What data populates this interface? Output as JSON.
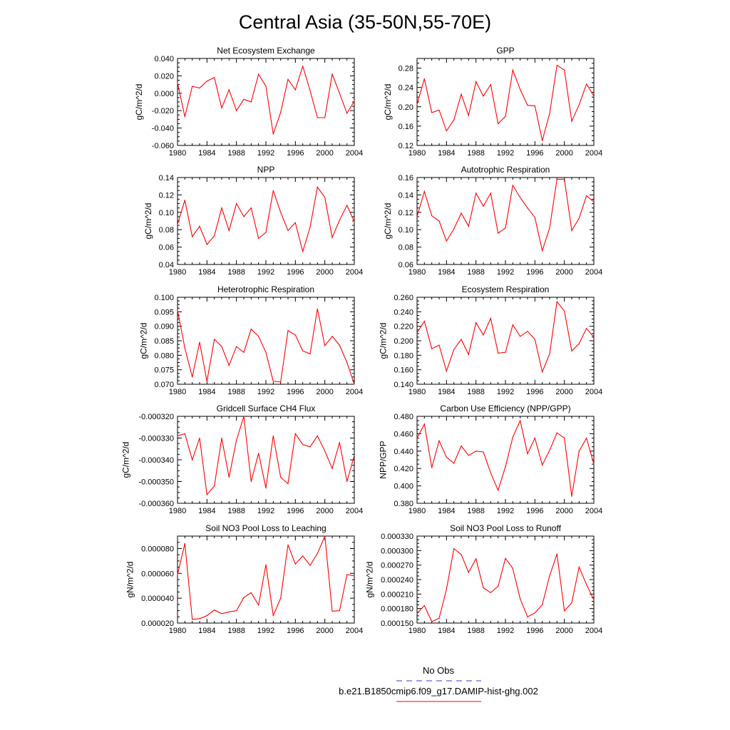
{
  "title": "Central Asia (35-50N,55-70E)",
  "colors": {
    "model_line": "#ff0000",
    "obs_line": "#3a3ad0",
    "axis": "#000000"
  },
  "legend": [
    {
      "label": "No Obs",
      "style": "dashed",
      "color": "#3a3ad0"
    },
    {
      "label": "b.e21.B1850cmip6.f09_g17.DAMIP-hist-ghg.002",
      "style": "solid",
      "color": "#ff0000"
    }
  ],
  "chart_data": [
    {
      "type": "line",
      "title": "Net Ecosystem Exchange",
      "ylabel": "gC/m^2/d",
      "xlim": [
        1980,
        2004
      ],
      "ylim": [
        -0.06,
        0.04
      ],
      "xticks": [
        "1980",
        "1984",
        "1988",
        "1992",
        "1996",
        "2000",
        "2004"
      ],
      "yticks": [
        "-0.060",
        "-0.040",
        "-0.020",
        "0.000",
        "0.020",
        "0.040"
      ],
      "x": [
        1980,
        1981,
        1982,
        1983,
        1984,
        1985,
        1986,
        1987,
        1988,
        1989,
        1990,
        1991,
        1992,
        1993,
        1994,
        1995,
        1996,
        1997,
        1998,
        1999,
        2000,
        2001,
        2002,
        2003,
        2004
      ],
      "values": [
        0.012,
        -0.027,
        0.008,
        0.006,
        0.014,
        0.018,
        -0.017,
        0.004,
        -0.02,
        -0.007,
        -0.01,
        0.022,
        0.008,
        -0.047,
        -0.022,
        0.016,
        0.004,
        0.031,
        0.003,
        -0.028,
        -0.028,
        0.022,
        0.0,
        -0.023,
        -0.009
      ]
    },
    {
      "type": "line",
      "title": "GPP",
      "ylabel": "gC/m^2/d",
      "xlim": [
        1980,
        2004
      ],
      "ylim": [
        0.12,
        0.3
      ],
      "xticks": [
        "1980",
        "1984",
        "1988",
        "1992",
        "1996",
        "2000",
        "2004"
      ],
      "yticks": [
        "0.12",
        "0.16",
        "0.20",
        "0.24",
        "0.28"
      ],
      "x": [
        1980,
        1981,
        1982,
        1983,
        1984,
        1985,
        1986,
        1987,
        1988,
        1989,
        1990,
        1991,
        1992,
        1993,
        1994,
        1995,
        1996,
        1997,
        1998,
        1999,
        2000,
        2001,
        2002,
        2003,
        2004
      ],
      "values": [
        0.205,
        0.258,
        0.188,
        0.193,
        0.15,
        0.173,
        0.226,
        0.182,
        0.252,
        0.222,
        0.246,
        0.165,
        0.18,
        0.276,
        0.236,
        0.203,
        0.202,
        0.13,
        0.186,
        0.286,
        0.276,
        0.17,
        0.204,
        0.247,
        0.222
      ]
    },
    {
      "type": "line",
      "title": "NPP",
      "ylabel": "gC/m^2/d",
      "xlim": [
        1980,
        2004
      ],
      "ylim": [
        0.04,
        0.14
      ],
      "xticks": [
        "1980",
        "1984",
        "1988",
        "1992",
        "1996",
        "2000",
        "2004"
      ],
      "yticks": [
        "0.04",
        "0.06",
        "0.08",
        "0.10",
        "0.12",
        "0.14"
      ],
      "x": [
        1980,
        1981,
        1982,
        1983,
        1984,
        1985,
        1986,
        1987,
        1988,
        1989,
        1990,
        1991,
        1992,
        1993,
        1994,
        1995,
        1996,
        1997,
        1998,
        1999,
        2000,
        2001,
        2002,
        2003,
        2004
      ],
      "values": [
        0.086,
        0.114,
        0.072,
        0.084,
        0.063,
        0.073,
        0.105,
        0.079,
        0.11,
        0.095,
        0.105,
        0.07,
        0.077,
        0.125,
        0.1,
        0.079,
        0.088,
        0.055,
        0.083,
        0.129,
        0.117,
        0.071,
        0.091,
        0.108,
        0.089
      ]
    },
    {
      "type": "line",
      "title": "Autotrophic Respiration",
      "ylabel": "gC/m^2/d",
      "xlim": [
        1980,
        2004
      ],
      "ylim": [
        0.06,
        0.16
      ],
      "xticks": [
        "1980",
        "1984",
        "1988",
        "1992",
        "1996",
        "2000",
        "2004"
      ],
      "yticks": [
        "0.06",
        "0.08",
        "0.10",
        "0.12",
        "0.14",
        "0.16"
      ],
      "x": [
        1980,
        1981,
        1982,
        1983,
        1984,
        1985,
        1986,
        1987,
        1988,
        1989,
        1990,
        1991,
        1992,
        1993,
        1994,
        1995,
        1996,
        1997,
        1998,
        1999,
        2000,
        2001,
        2002,
        2003,
        2004
      ],
      "values": [
        0.115,
        0.144,
        0.116,
        0.11,
        0.087,
        0.101,
        0.119,
        0.104,
        0.142,
        0.127,
        0.142,
        0.096,
        0.102,
        0.151,
        0.137,
        0.125,
        0.114,
        0.076,
        0.102,
        0.158,
        0.158,
        0.099,
        0.113,
        0.139,
        0.132
      ]
    },
    {
      "type": "line",
      "title": "Heterotrophic Respiration",
      "ylabel": "gC/m^2/d",
      "xlim": [
        1980,
        2004
      ],
      "ylim": [
        0.07,
        0.1
      ],
      "xticks": [
        "1980",
        "1984",
        "1988",
        "1992",
        "1996",
        "2000",
        "2004"
      ],
      "yticks": [
        "0.070",
        "0.075",
        "0.080",
        "0.085",
        "0.090",
        "0.095",
        "0.100"
      ],
      "x": [
        1980,
        1981,
        1982,
        1983,
        1984,
        1985,
        1986,
        1987,
        1988,
        1989,
        1990,
        1991,
        1992,
        1993,
        1994,
        1995,
        1996,
        1997,
        1998,
        1999,
        2000,
        2001,
        2002,
        2003,
        2004
      ],
      "values": [
        0.0955,
        0.0825,
        0.0725,
        0.0845,
        0.071,
        0.0855,
        0.083,
        0.0765,
        0.083,
        0.081,
        0.089,
        0.0865,
        0.081,
        0.071,
        0.0708,
        0.0885,
        0.087,
        0.0815,
        0.0805,
        0.096,
        0.0833,
        0.0865,
        0.0835,
        0.0775,
        0.07
      ]
    },
    {
      "type": "line",
      "title": "Ecosystem Respiration",
      "ylabel": "gC/m^2/d",
      "xlim": [
        1980,
        2004
      ],
      "ylim": [
        0.14,
        0.26
      ],
      "xticks": [
        "1980",
        "1984",
        "1988",
        "1992",
        "1996",
        "2000",
        "2004"
      ],
      "yticks": [
        "0.140",
        "0.160",
        "0.180",
        "0.200",
        "0.220",
        "0.240",
        "0.260"
      ],
      "x": [
        1980,
        1981,
        1982,
        1983,
        1984,
        1985,
        1986,
        1987,
        1988,
        1989,
        1990,
        1991,
        1992,
        1993,
        1994,
        1995,
        1996,
        1997,
        1998,
        1999,
        2000,
        2001,
        2002,
        2003,
        2004
      ],
      "values": [
        0.211,
        0.227,
        0.189,
        0.194,
        0.158,
        0.188,
        0.202,
        0.181,
        0.225,
        0.208,
        0.231,
        0.183,
        0.184,
        0.222,
        0.206,
        0.213,
        0.202,
        0.157,
        0.182,
        0.254,
        0.241,
        0.186,
        0.196,
        0.217,
        0.205
      ]
    },
    {
      "type": "line",
      "title": "Gridcell Surface CH4 Flux",
      "ylabel": "gC/m^2/d",
      "xlim": [
        1980,
        2004
      ],
      "ylim": [
        -0.00036,
        -0.00032
      ],
      "xticks": [
        "1980",
        "1984",
        "1988",
        "1992",
        "1996",
        "2000",
        "2004"
      ],
      "yticks": [
        "-0.000360",
        "-0.000350",
        "-0.000340",
        "-0.000330",
        "-0.000320"
      ],
      "x": [
        1980,
        1981,
        1982,
        1983,
        1984,
        1985,
        1986,
        1987,
        1988,
        1989,
        1990,
        1991,
        1992,
        1993,
        1994,
        1995,
        1996,
        1997,
        1998,
        1999,
        2000,
        2001,
        2002,
        2003,
        2004
      ],
      "values": [
        -0.000329,
        -0.000328,
        -0.00034,
        -0.00033,
        -0.000356,
        -0.000352,
        -0.00033,
        -0.000348,
        -0.000331,
        -0.00032,
        -0.00035,
        -0.000337,
        -0.000353,
        -0.000329,
        -0.000348,
        -0.000351,
        -0.000328,
        -0.000333,
        -0.000334,
        -0.000329,
        -0.000336,
        -0.000344,
        -0.000332,
        -0.00035,
        -0.000338
      ]
    },
    {
      "type": "line",
      "title": "Carbon Use Efficiency (NPP/GPP)",
      "ylabel": "NPP/GPP",
      "xlim": [
        1980,
        2004
      ],
      "ylim": [
        0.38,
        0.48
      ],
      "xticks": [
        "1980",
        "1984",
        "1988",
        "1992",
        "1996",
        "2000",
        "2004"
      ],
      "yticks": [
        "0.380",
        "0.400",
        "0.420",
        "0.440",
        "0.460",
        "0.480"
      ],
      "x": [
        1980,
        1981,
        1982,
        1983,
        1984,
        1985,
        1986,
        1987,
        1988,
        1989,
        1990,
        1991,
        1992,
        1993,
        1994,
        1995,
        1996,
        1997,
        1998,
        1999,
        2000,
        2001,
        2002,
        2003,
        2004
      ],
      "values": [
        0.455,
        0.471,
        0.421,
        0.452,
        0.433,
        0.426,
        0.446,
        0.435,
        0.44,
        0.439,
        0.415,
        0.395,
        0.422,
        0.456,
        0.475,
        0.437,
        0.455,
        0.424,
        0.441,
        0.461,
        0.455,
        0.388,
        0.44,
        0.455,
        0.425
      ]
    },
    {
      "type": "line",
      "title": "Soil NO3 Pool Loss to Leaching",
      "ylabel": "gN/m^2/d",
      "xlim": [
        1980,
        2004
      ],
      "ylim": [
        2e-05,
        9e-05
      ],
      "xticks": [
        "1980",
        "1984",
        "1988",
        "1992",
        "1996",
        "2000",
        "2004"
      ],
      "yticks": [
        "0.000020",
        "0.000040",
        "0.000060",
        "0.000080"
      ],
      "x": [
        1980,
        1981,
        1982,
        1983,
        1984,
        1985,
        1986,
        1987,
        1988,
        1989,
        1990,
        1991,
        1992,
        1993,
        1994,
        1995,
        1996,
        1997,
        1998,
        1999,
        2000,
        2001,
        2002,
        2003,
        2004
      ],
      "values": [
        5.9e-05,
        8.4e-05,
        2.3e-05,
        2.35e-05,
        2.6e-05,
        3.05e-05,
        2.75e-05,
        2.9e-05,
        3e-05,
        4.05e-05,
        4.45e-05,
        3.45e-05,
        6.7e-05,
        2.6e-05,
        4e-05,
        8.3e-05,
        6.75e-05,
        7.4e-05,
        6.65e-05,
        7.6e-05,
        9e-05,
        2.95e-05,
        3e-05,
        5.9e-05,
        5.8e-05
      ]
    },
    {
      "type": "line",
      "title": "Soil NO3 Pool Loss to Runoff",
      "ylabel": "gN/m^2/d",
      "xlim": [
        1980,
        2004
      ],
      "ylim": [
        0.00015,
        0.00033
      ],
      "xticks": [
        "1980",
        "1984",
        "1988",
        "1992",
        "1996",
        "2000",
        "2004"
      ],
      "yticks": [
        "0.000150",
        "0.000180",
        "0.000210",
        "0.000240",
        "0.000270",
        "0.000300",
        "0.000330"
      ],
      "x": [
        1980,
        1981,
        1982,
        1983,
        1984,
        1985,
        1986,
        1987,
        1988,
        1989,
        1990,
        1991,
        1992,
        1993,
        1994,
        1995,
        1996,
        1997,
        1998,
        1999,
        2000,
        2001,
        2002,
        2003,
        2004
      ],
      "values": [
        0.00017,
        0.000186,
        0.000153,
        0.00016,
        0.00022,
        0.000304,
        0.000292,
        0.000255,
        0.000283,
        0.000223,
        0.000213,
        0.000226,
        0.000284,
        0.000263,
        0.0002,
        0.000163,
        0.000171,
        0.000188,
        0.000248,
        0.000293,
        0.000175,
        0.000192,
        0.000266,
        0.00023,
        0.000198
      ]
    }
  ]
}
